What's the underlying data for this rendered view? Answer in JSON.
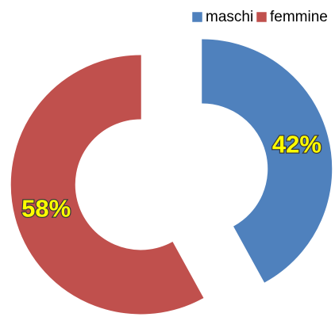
{
  "chart_data": {
    "type": "pie",
    "categories": [
      "maschi",
      "femmine"
    ],
    "values": [
      42,
      58
    ],
    "value_labels": [
      "42%",
      "58%"
    ],
    "colors": [
      "#4f81bd",
      "#c0504d"
    ],
    "legend": "top-right"
  }
}
